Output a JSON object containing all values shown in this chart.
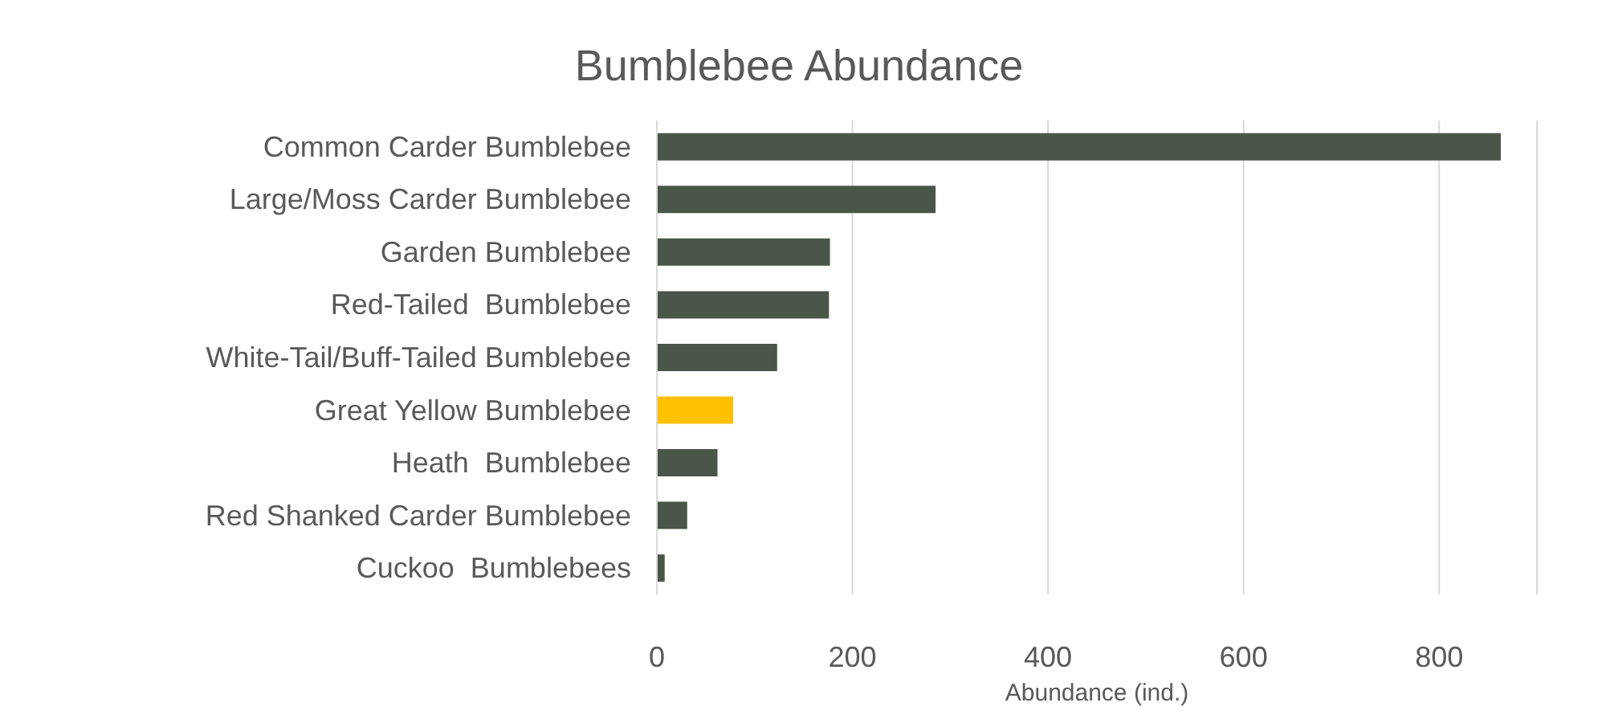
{
  "chart_data": {
    "type": "bar",
    "orientation": "horizontal",
    "title": "Bumblebee Abundance",
    "xlabel": "Abundance (ind.)",
    "categories": [
      "Common Carder Bumblebee",
      "Large/Moss Carder Bumblebee",
      "Garden Bumblebee",
      "Red-Tailed  Bumblebee",
      "White-Tail/Buff-Tailed Bumblebee",
      "Great Yellow Bumblebee",
      "Heath  Bumblebee",
      "Red Shanked Carder Bumblebee",
      "Cuckoo  Bumblebees"
    ],
    "values": [
      863,
      285,
      177,
      176,
      123,
      78,
      62,
      31,
      8
    ],
    "colors": [
      "#4a5649",
      "#4a5649",
      "#4a5649",
      "#4a5649",
      "#4a5649",
      "#ffc000",
      "#4a5649",
      "#4a5649",
      "#4a5649"
    ],
    "xlim": [
      0,
      900
    ],
    "xticks": [
      0,
      200,
      400,
      600,
      800
    ],
    "grid": "x"
  }
}
